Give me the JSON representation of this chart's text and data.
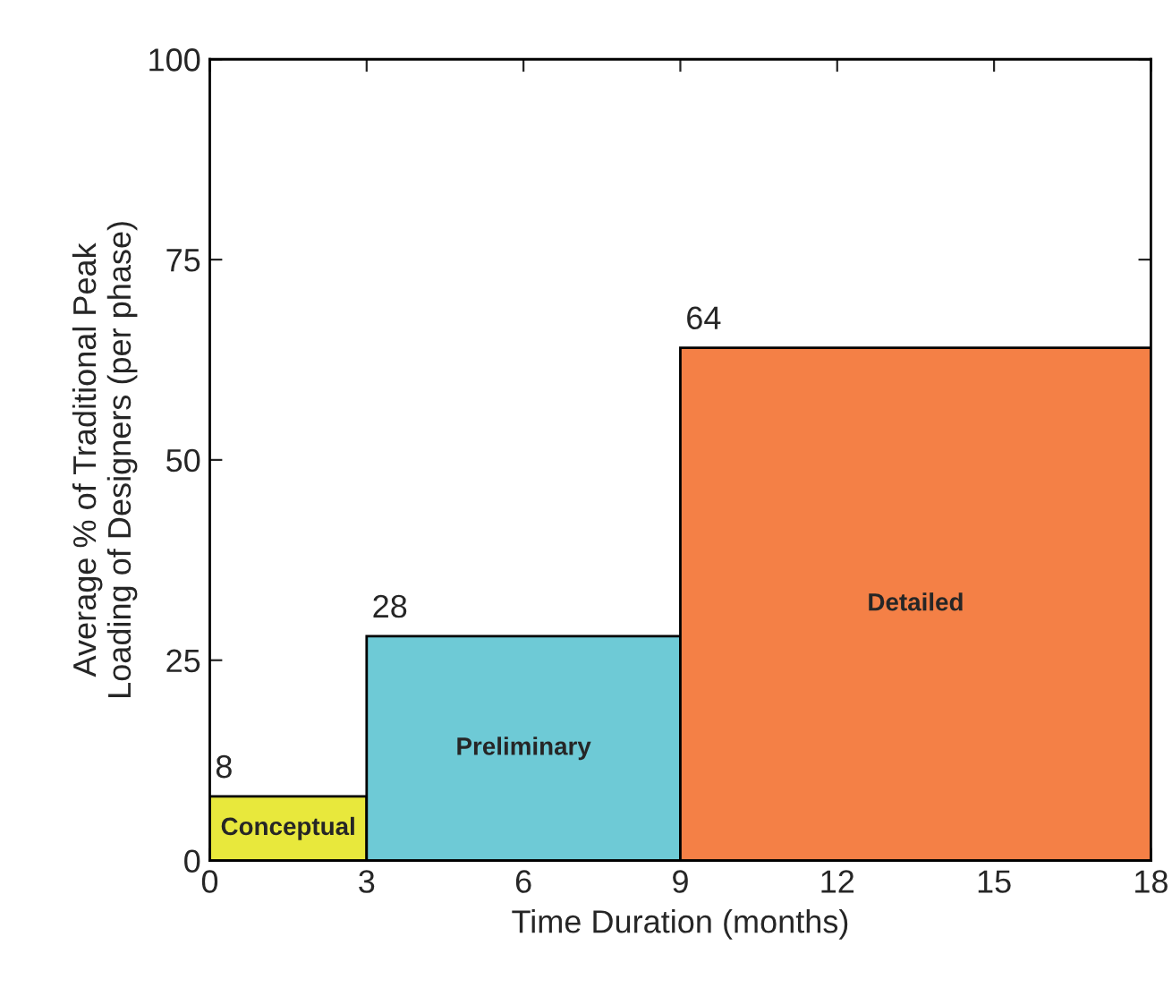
{
  "chart_data": {
    "type": "histogram",
    "bins": [
      0,
      3,
      9,
      18
    ],
    "values": [
      8,
      28,
      64
    ],
    "colors": [
      "#e8e83c",
      "#6ecad6",
      "#f48046"
    ],
    "data_labels": true,
    "xlabel": "Time Duration (months)",
    "ylabel": "Average % of Traditional Peak\nLoading of Designers (per phase)",
    "xlim": [
      0,
      18
    ],
    "xticks": [
      0,
      3,
      6,
      9,
      12,
      15,
      18
    ],
    "ylim": [
      0,
      100
    ],
    "yticks": [
      0,
      25,
      50,
      75,
      100
    ],
    "grid": false,
    "annotations": [
      "Conceptual",
      "Preliminary",
      "Detailed"
    ]
  }
}
